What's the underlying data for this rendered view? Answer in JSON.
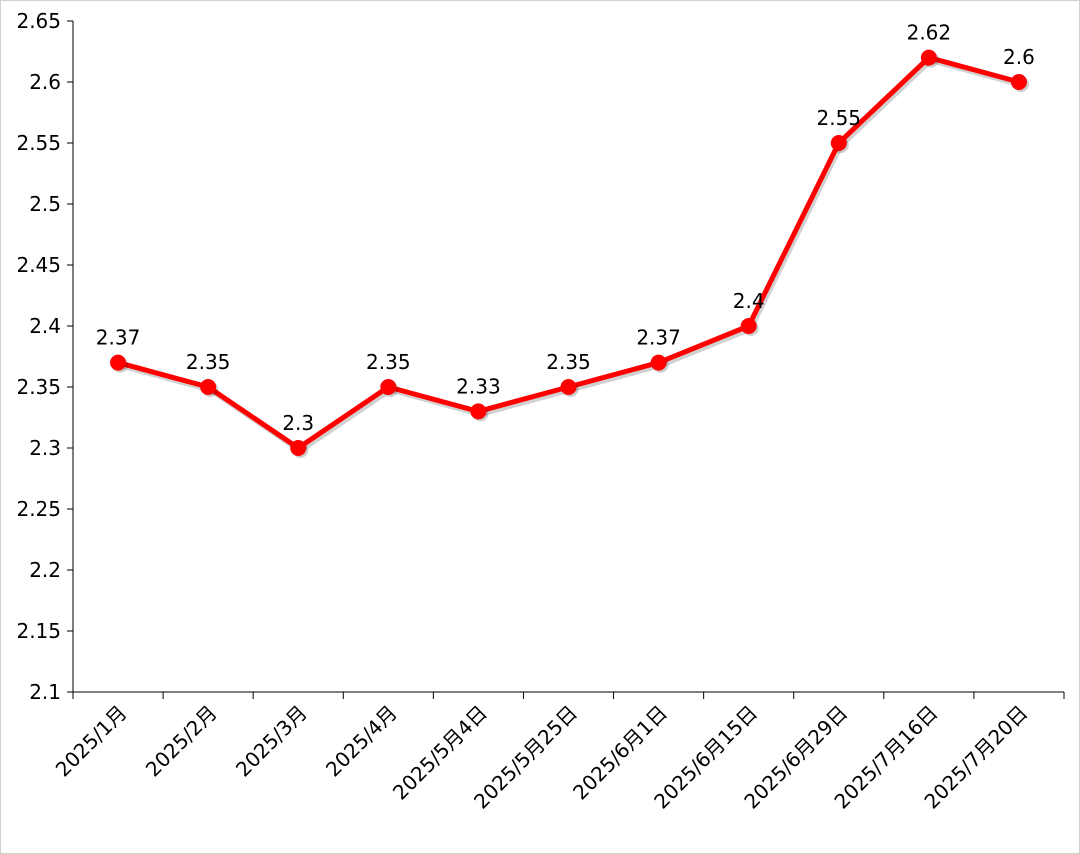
{
  "chart_data": {
    "type": "line",
    "categories": [
      "2025/1月",
      "2025/2月",
      "2025/3月",
      "2025/4月",
      "2025/5月4日",
      "2025/5月25日",
      "2025/6月1日",
      "2025/6月15日",
      "2025/6月29日",
      "2025/7月16日",
      "2025/7月20日"
    ],
    "series": [
      {
        "values": [
          2.37,
          2.35,
          2.3,
          2.35,
          2.33,
          2.35,
          2.37,
          2.4,
          2.55,
          2.62,
          2.6
        ]
      }
    ],
    "data_labels": [
      "2.37",
      "2.35",
      "2.3",
      "2.35",
      "2.33",
      "2.35",
      "2.37",
      "2.4",
      "2.55",
      "2.62",
      "2.6"
    ],
    "y_ticks": [
      "2.1",
      "2.15",
      "2.2",
      "2.25",
      "2.3",
      "2.35",
      "2.4",
      "2.45",
      "2.5",
      "2.55",
      "2.6",
      "2.65"
    ],
    "ylim": [
      2.1,
      2.65
    ],
    "title": "",
    "xlabel": "",
    "ylabel": "",
    "grid": false,
    "legend": "none",
    "line_color": "#ff0000"
  }
}
